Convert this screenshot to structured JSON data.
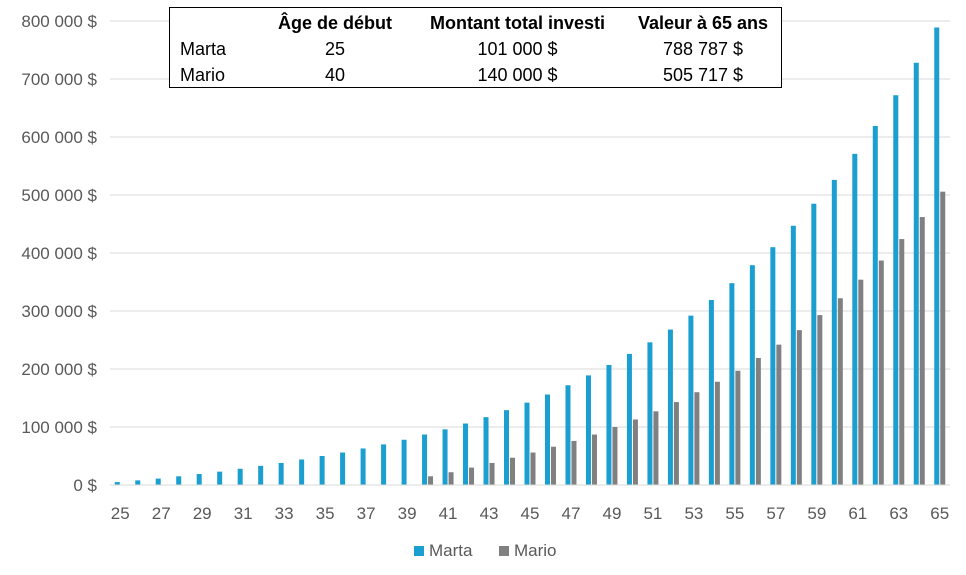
{
  "summary_table": {
    "headers": [
      "",
      "Âge de début",
      "Montant total investi",
      "Valeur à 65 ans"
    ],
    "rows": [
      [
        "Marta",
        "25",
        "101 000 $",
        "788 787 $"
      ],
      [
        "Mario",
        "40",
        "140 000 $",
        "505 717 $"
      ]
    ]
  },
  "chart_data": {
    "type": "bar",
    "ylim": [
      0,
      800000
    ],
    "y_ticks": [
      0,
      100000,
      200000,
      300000,
      400000,
      500000,
      600000,
      700000,
      800000
    ],
    "y_tick_labels": [
      "0 $",
      "100 000 $",
      "200 000 $",
      "300 000 $",
      "400 000 $",
      "500 000 $",
      "600 000 $",
      "700 000 $",
      "800 000 $"
    ],
    "categories": [
      25,
      26,
      27,
      28,
      29,
      30,
      31,
      32,
      33,
      34,
      35,
      36,
      37,
      38,
      39,
      40,
      41,
      42,
      43,
      44,
      45,
      46,
      47,
      48,
      49,
      50,
      51,
      52,
      53,
      54,
      55,
      56,
      57,
      58,
      59,
      60,
      61,
      62,
      63,
      64,
      65
    ],
    "x_tick_labels": [
      "25",
      "27",
      "29",
      "31",
      "33",
      "35",
      "37",
      "39",
      "41",
      "43",
      "45",
      "47",
      "49",
      "51",
      "53",
      "55",
      "57",
      "59",
      "61",
      "63",
      "65"
    ],
    "legend_position": "bottom",
    "series": [
      {
        "name": "Marta",
        "color": "#1a9fd0",
        "values": [
          5000,
          8000,
          11000,
          15000,
          19000,
          23000,
          28000,
          33000,
          38000,
          44000,
          50000,
          56000,
          63000,
          70000,
          78000,
          87000,
          96000,
          106000,
          117000,
          129000,
          142000,
          156000,
          172000,
          189000,
          207000,
          226000,
          246000,
          268000,
          292000,
          319000,
          348000,
          379000,
          410000,
          447000,
          485000,
          526000,
          571000,
          619000,
          672000,
          728000,
          788787
        ]
      },
      {
        "name": "Mario",
        "color": "#808080",
        "values": [
          0,
          0,
          0,
          0,
          0,
          0,
          0,
          0,
          0,
          0,
          0,
          0,
          0,
          0,
          0,
          15000,
          22000,
          30000,
          38000,
          47000,
          56000,
          66000,
          76000,
          87000,
          100000,
          113000,
          127000,
          143000,
          160000,
          178000,
          197000,
          219000,
          242000,
          267000,
          293000,
          322000,
          354000,
          387000,
          424000,
          462000,
          505717
        ]
      }
    ]
  }
}
